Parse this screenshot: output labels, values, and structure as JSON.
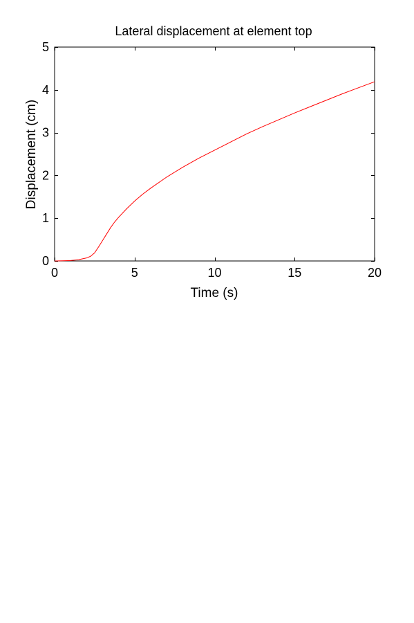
{
  "chart_data": {
    "type": "line",
    "title": "Lateral displacement at element top",
    "xlabel": "Time (s)",
    "ylabel": "Displacement (cm)",
    "xlim": [
      0,
      20
    ],
    "ylim": [
      0,
      5
    ],
    "xticks": [
      0,
      5,
      10,
      15,
      20
    ],
    "yticks": [
      0,
      1,
      2,
      3,
      4,
      5
    ],
    "xtick_labels": [
      "0",
      "5",
      "10",
      "15",
      "20"
    ],
    "ytick_labels": [
      "0",
      "1",
      "2",
      "3",
      "4",
      "5"
    ],
    "grid": false,
    "line_color": "#ff0000",
    "series": [
      {
        "x": [
          0,
          0.5,
          1.0,
          1.5,
          2.0,
          2.25,
          2.5,
          2.75,
          3.0,
          3.25,
          3.5,
          3.75,
          4.0,
          4.5,
          5.0,
          5.5,
          6.0,
          7.0,
          8.0,
          9.0,
          10.0,
          11.0,
          12.0,
          13.0,
          14.0,
          15.0,
          16.0,
          17.0,
          18.0,
          19.0,
          20.0
        ],
        "y": [
          0.0,
          0.003,
          0.01,
          0.03,
          0.07,
          0.11,
          0.19,
          0.33,
          0.48,
          0.63,
          0.78,
          0.91,
          1.02,
          1.22,
          1.4,
          1.56,
          1.7,
          1.96,
          2.19,
          2.4,
          2.59,
          2.78,
          2.97,
          3.14,
          3.3,
          3.46,
          3.61,
          3.76,
          3.91,
          4.05,
          4.19
        ]
      }
    ]
  }
}
